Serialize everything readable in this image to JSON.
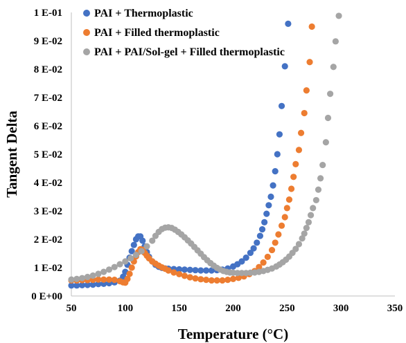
{
  "chart_data": {
    "type": "scatter",
    "xlabel": "Temperature (°C)",
    "ylabel": "Tangent Delta",
    "xlim": [
      50,
      350
    ],
    "ylim": [
      0,
      0.1
    ],
    "x_ticks": [
      "50",
      "100",
      "150",
      "200",
      "250",
      "300",
      "350"
    ],
    "y_ticks": [
      "0 E+00",
      "1 E-02",
      "2 E-02",
      "3 E-02",
      "4 E-02",
      "5 E-02",
      "6 E-02",
      "7 E-02",
      "8 E-02",
      "9 E-02",
      "1 E-01"
    ],
    "grid": false,
    "legend_position": "top-left",
    "series": [
      {
        "name": "PAI + Thermoplastic",
        "color": "#4472C4",
        "points": [
          [
            50,
            0.0037
          ],
          [
            55,
            0.0037
          ],
          [
            60,
            0.0038
          ],
          [
            65,
            0.0039
          ],
          [
            70,
            0.004
          ],
          [
            75,
            0.0042
          ],
          [
            80,
            0.0043
          ],
          [
            85,
            0.0045
          ],
          [
            90,
            0.0048
          ],
          [
            95,
            0.0054
          ],
          [
            98,
            0.0068
          ],
          [
            100,
            0.0085
          ],
          [
            102,
            0.011
          ],
          [
            104,
            0.0135
          ],
          [
            106,
            0.0158
          ],
          [
            108,
            0.018
          ],
          [
            110,
            0.02
          ],
          [
            112,
            0.021
          ],
          [
            114,
            0.021
          ],
          [
            116,
            0.0195
          ],
          [
            118,
            0.0175
          ],
          [
            120,
            0.0155
          ],
          [
            122,
            0.0138
          ],
          [
            125,
            0.0122
          ],
          [
            128,
            0.011
          ],
          [
            131,
            0.0103
          ],
          [
            134,
            0.0099
          ],
          [
            137,
            0.0097
          ],
          [
            140,
            0.0096
          ],
          [
            145,
            0.0095
          ],
          [
            150,
            0.0094
          ],
          [
            155,
            0.0093
          ],
          [
            160,
            0.0092
          ],
          [
            165,
            0.0091
          ],
          [
            170,
            0.009
          ],
          [
            175,
            0.009
          ],
          [
            180,
            0.009
          ],
          [
            185,
            0.0091
          ],
          [
            190,
            0.0093
          ],
          [
            195,
            0.0097
          ],
          [
            200,
            0.0104
          ],
          [
            204,
            0.0112
          ],
          [
            208,
            0.0122
          ],
          [
            212,
            0.0135
          ],
          [
            216,
            0.0152
          ],
          [
            219,
            0.0168
          ],
          [
            222,
            0.0188
          ],
          [
            225,
            0.0212
          ],
          [
            227,
            0.0235
          ],
          [
            229,
            0.026
          ],
          [
            231,
            0.029
          ],
          [
            233,
            0.032
          ],
          [
            235,
            0.035
          ],
          [
            237,
            0.039
          ],
          [
            239,
            0.044
          ],
          [
            241,
            0.05
          ],
          [
            243,
            0.057
          ],
          [
            245,
            0.067
          ],
          [
            248,
            0.081
          ],
          [
            251,
            0.096
          ]
        ]
      },
      {
        "name": "PAI + Filled thermoplastic",
        "color": "#ED7D31",
        "points": [
          [
            50,
            0.0055
          ],
          [
            55,
            0.0055
          ],
          [
            60,
            0.0056
          ],
          [
            65,
            0.0056
          ],
          [
            70,
            0.0057
          ],
          [
            75,
            0.0058
          ],
          [
            80,
            0.0058
          ],
          [
            85,
            0.0058
          ],
          [
            90,
            0.0057
          ],
          [
            95,
            0.0052
          ],
          [
            98,
            0.0048
          ],
          [
            100,
            0.0047
          ],
          [
            102,
            0.006
          ],
          [
            104,
            0.0078
          ],
          [
            106,
            0.01
          ],
          [
            108,
            0.0122
          ],
          [
            110,
            0.014
          ],
          [
            112,
            0.0155
          ],
          [
            114,
            0.0165
          ],
          [
            116,
            0.0163
          ],
          [
            118,
            0.0152
          ],
          [
            120,
            0.0142
          ],
          [
            122,
            0.0133
          ],
          [
            125,
            0.0122
          ],
          [
            128,
            0.0114
          ],
          [
            131,
            0.0107
          ],
          [
            134,
            0.0101
          ],
          [
            137,
            0.0096
          ],
          [
            140,
            0.009
          ],
          [
            145,
            0.0083
          ],
          [
            150,
            0.0077
          ],
          [
            155,
            0.0071
          ],
          [
            160,
            0.0066
          ],
          [
            165,
            0.0062
          ],
          [
            170,
            0.0059
          ],
          [
            175,
            0.0057
          ],
          [
            180,
            0.0055
          ],
          [
            185,
            0.0055
          ],
          [
            190,
            0.0055
          ],
          [
            195,
            0.0057
          ],
          [
            200,
            0.006
          ],
          [
            205,
            0.0064
          ],
          [
            210,
            0.0069
          ],
          [
            215,
            0.0077
          ],
          [
            220,
            0.0088
          ],
          [
            224,
            0.0102
          ],
          [
            228,
            0.0118
          ],
          [
            232,
            0.0138
          ],
          [
            236,
            0.0162
          ],
          [
            239,
            0.0188
          ],
          [
            242,
            0.0217
          ],
          [
            245,
            0.0248
          ],
          [
            248,
            0.0278
          ],
          [
            250,
            0.031
          ],
          [
            252,
            0.034
          ],
          [
            254,
            0.0378
          ],
          [
            256,
            0.042
          ],
          [
            258,
            0.0465
          ],
          [
            261,
            0.0515
          ],
          [
            263,
            0.0575
          ],
          [
            266,
            0.0645
          ],
          [
            268,
            0.0725
          ],
          [
            271,
            0.0825
          ],
          [
            273,
            0.095
          ]
        ]
      },
      {
        "name": "PAI + PAI/Sol-gel + Filled thermoplastic",
        "color": "#A5A5A5",
        "points": [
          [
            50,
            0.0058
          ],
          [
            55,
            0.006
          ],
          [
            60,
            0.0063
          ],
          [
            65,
            0.0067
          ],
          [
            70,
            0.0072
          ],
          [
            75,
            0.0078
          ],
          [
            80,
            0.0085
          ],
          [
            85,
            0.0093
          ],
          [
            90,
            0.0102
          ],
          [
            95,
            0.0112
          ],
          [
            100,
            0.0122
          ],
          [
            105,
            0.0133
          ],
          [
            110,
            0.0145
          ],
          [
            115,
            0.0158
          ],
          [
            120,
            0.0175
          ],
          [
            125,
            0.0195
          ],
          [
            128,
            0.0212
          ],
          [
            131,
            0.0226
          ],
          [
            134,
            0.0236
          ],
          [
            137,
            0.0241
          ],
          [
            140,
            0.0242
          ],
          [
            143,
            0.024
          ],
          [
            146,
            0.0234
          ],
          [
            149,
            0.0226
          ],
          [
            152,
            0.0217
          ],
          [
            155,
            0.0207
          ],
          [
            158,
            0.0196
          ],
          [
            161,
            0.0185
          ],
          [
            164,
            0.0173
          ],
          [
            167,
            0.0161
          ],
          [
            170,
            0.0149
          ],
          [
            173,
            0.0137
          ],
          [
            176,
            0.0126
          ],
          [
            179,
            0.0116
          ],
          [
            182,
            0.0107
          ],
          [
            185,
            0.0099
          ],
          [
            188,
            0.0093
          ],
          [
            191,
            0.0088
          ],
          [
            194,
            0.0085
          ],
          [
            197,
            0.0083
          ],
          [
            200,
            0.0082
          ],
          [
            204,
            0.0081
          ],
          [
            208,
            0.0081
          ],
          [
            212,
            0.0081
          ],
          [
            216,
            0.0082
          ],
          [
            220,
            0.0083
          ],
          [
            224,
            0.0085
          ],
          [
            228,
            0.0088
          ],
          [
            232,
            0.0092
          ],
          [
            236,
            0.0097
          ],
          [
            240,
            0.0104
          ],
          [
            243,
            0.0111
          ],
          [
            246,
            0.0119
          ],
          [
            249,
            0.0128
          ],
          [
            252,
            0.0139
          ],
          [
            255,
            0.0152
          ],
          [
            258,
            0.0166
          ],
          [
            261,
            0.0183
          ],
          [
            264,
            0.0203
          ],
          [
            266,
            0.022
          ],
          [
            268,
            0.024
          ],
          [
            270,
            0.026
          ],
          [
            272,
            0.0285
          ],
          [
            274,
            0.031
          ],
          [
            277,
            0.0338
          ],
          [
            279,
            0.0375
          ],
          [
            281,
            0.0415
          ],
          [
            283,
            0.0462
          ],
          [
            286,
            0.0542
          ],
          [
            288,
            0.0628
          ],
          [
            290,
            0.0713
          ],
          [
            293,
            0.0808
          ],
          [
            295,
            0.0898
          ],
          [
            298,
            0.0988
          ]
        ]
      }
    ]
  }
}
